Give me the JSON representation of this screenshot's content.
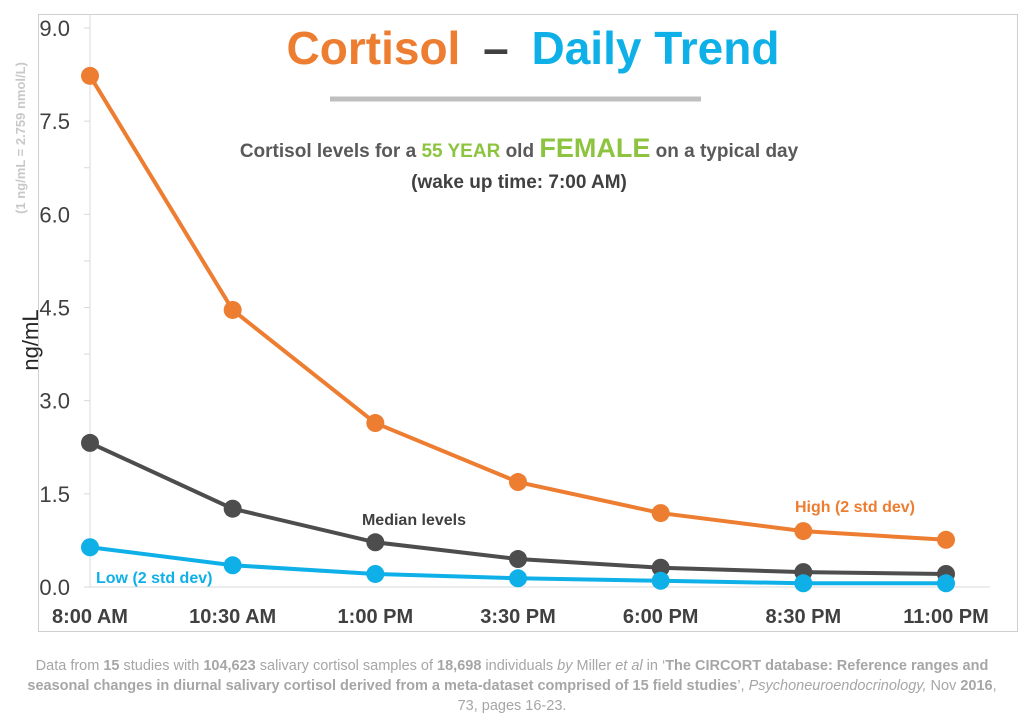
{
  "chart_data": {
    "type": "line",
    "title_part1": "Cortisol",
    "title_dash": "–",
    "title_part2": "Daily Trend",
    "subtitle_prefix": "Cortisol levels for a",
    "subtitle_age": "55 YEAR",
    "subtitle_mid": "old",
    "subtitle_sex": "FEMALE",
    "subtitle_suffix": "on a typical day",
    "subtitle_line2": "(wake up time: 7:00 AM)",
    "ylabel": "ng/mL",
    "ynote": "(1 ng/mL = 2.759 nmol/L)",
    "ylim": [
      0,
      9.0
    ],
    "yticks": [
      "0.0",
      "1.5",
      "3.0",
      "4.5",
      "6.0",
      "7.5",
      "9.0"
    ],
    "categories": [
      "8:00 AM",
      "10:30 AM",
      "1:00 PM",
      "3:30 PM",
      "6:00 PM",
      "8:30 PM",
      "11:00 PM"
    ],
    "series": [
      {
        "name": "High (2 std dev)",
        "color": "#ed7d31",
        "values": [
          8.23,
          4.46,
          2.64,
          1.69,
          1.19,
          0.9,
          0.76
        ]
      },
      {
        "name": "Median levels",
        "color": "#4d4d4d",
        "values": [
          2.32,
          1.26,
          0.72,
          0.45,
          0.31,
          0.24,
          0.21
        ]
      },
      {
        "name": "Low (2 std dev)",
        "color": "#0fb0e8",
        "values": [
          0.64,
          0.35,
          0.21,
          0.14,
          0.1,
          0.06,
          0.06
        ]
      }
    ],
    "colors": {
      "title_orange": "#ed7d31",
      "title_blue": "#0fb0e8",
      "accent_green": "#8cc43f",
      "divider": "#bfbfbf"
    }
  },
  "footer": [
    {
      "t": "Data from ",
      "s": ""
    },
    {
      "t": "15",
      "s": "b"
    },
    {
      "t": " studies with ",
      "s": ""
    },
    {
      "t": "104,623",
      "s": "b"
    },
    {
      "t": " salivary cortisol samples of ",
      "s": ""
    },
    {
      "t": "18,698",
      "s": "b"
    },
    {
      "t": " individuals ",
      "s": ""
    },
    {
      "t": "by",
      "s": "i"
    },
    {
      "t": " Miller ",
      "s": ""
    },
    {
      "t": "et al",
      "s": "i"
    },
    {
      "t": " in ‘",
      "s": ""
    },
    {
      "t": "The CIRCORT database: Reference ranges and seasonal changes in diurnal salivary cortisol derived from a meta-dataset comprised of 15 field studies",
      "s": "b"
    },
    {
      "t": "’, ",
      "s": ""
    },
    {
      "t": "Psychoneuroendocrinology,",
      "s": "i"
    },
    {
      "t": " Nov ",
      "s": ""
    },
    {
      "t": "2016",
      "s": "b"
    },
    {
      "t": ", 73, pages 16-23.",
      "s": ""
    }
  ]
}
